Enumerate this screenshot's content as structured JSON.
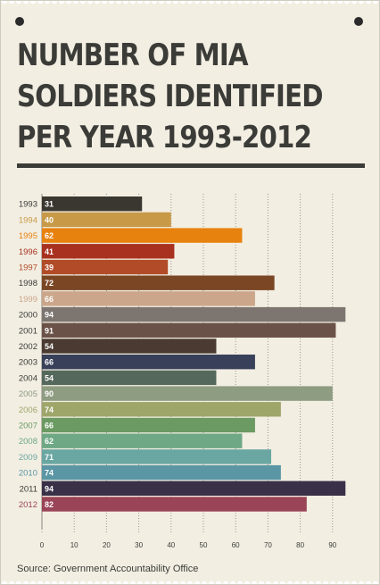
{
  "title_lines": [
    "NUMBER OF MIA",
    "SOLDIERS IDENTIFIED",
    "PER YEAR 1993-2012"
  ],
  "source": "Source: Government Accountability Office",
  "chart_data": {
    "type": "bar",
    "orientation": "horizontal",
    "title": "NUMBER OF MIA SOLDIERS IDENTIFIED PER YEAR 1993-2012",
    "categories": [
      "1993",
      "1994",
      "1995",
      "1996",
      "1997",
      "1998",
      "1999",
      "2000",
      "2001",
      "2002",
      "2003",
      "2004",
      "2005",
      "2006",
      "2007",
      "2008",
      "2009",
      "2010",
      "2011",
      "2012"
    ],
    "values": [
      31,
      40,
      62,
      41,
      39,
      72,
      66,
      94,
      91,
      54,
      66,
      54,
      90,
      74,
      66,
      62,
      71,
      74,
      94,
      82
    ],
    "colors": [
      "#3a3630",
      "#c89a48",
      "#e8820e",
      "#a8311f",
      "#b24c28",
      "#7a4624",
      "#cba68a",
      "#7c7570",
      "#6b5248",
      "#4a3a32",
      "#38405a",
      "#55685c",
      "#8e9c82",
      "#9ea66a",
      "#6b9a62",
      "#6ea884",
      "#6aa6a2",
      "#5b96a4",
      "#3a3048",
      "#9a4458"
    ],
    "label_colors": [
      "#3b3b38",
      "#c89a48",
      "#e8820e",
      "#a8311f",
      "#b24c28",
      "#3b3b38",
      "#cba68a",
      "#3b3b38",
      "#3b3b38",
      "#3b3b38",
      "#3b3b38",
      "#3b3b38",
      "#8e9c82",
      "#9ea66a",
      "#6b9a62",
      "#6ea884",
      "#6aa6a2",
      "#5b96a4",
      "#3b3b38",
      "#9a4458"
    ],
    "x_ticks": [
      0,
      10,
      20,
      30,
      40,
      50,
      60,
      70,
      80,
      90
    ],
    "xlim": [
      0,
      95
    ],
    "grid": true
  }
}
